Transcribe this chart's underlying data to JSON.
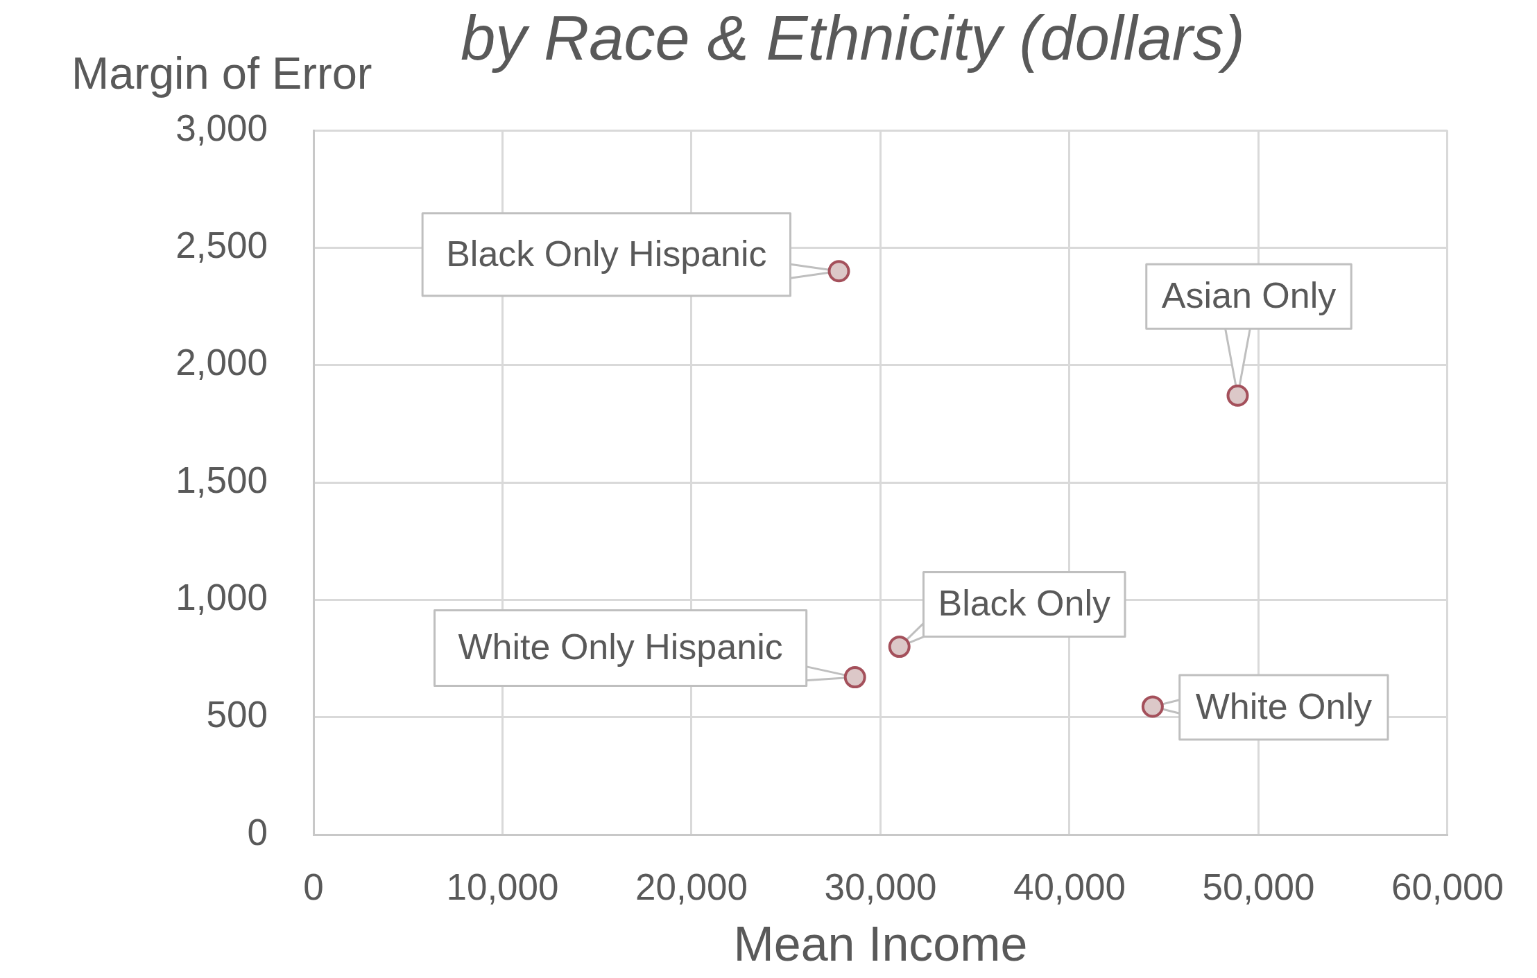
{
  "chart_data": {
    "type": "scatter",
    "title": "by Race & Ethnicity (dollars)",
    "xlabel": "Mean Income",
    "ylabel": "Margin of Error",
    "x": [
      27800,
      48900,
      31000,
      28650,
      44400
    ],
    "series": [
      {
        "color": "#dcc8c8",
        "values": [
          2400,
          1870,
          800,
          670,
          545
        ]
      }
    ],
    "xlim": [
      0,
      60000
    ],
    "xticks": [
      0,
      {
        "value": 10000,
        "label": "10,000"
      },
      {
        "value": 20000,
        "label": "20,000"
      },
      {
        "value": 30000,
        "label": "30,000"
      },
      {
        "value": 40000,
        "label": "40,000"
      },
      {
        "value": 50000,
        "label": "50,000"
      },
      {
        "value": 60000,
        "label": "60,000"
      }
    ],
    "ylim": [
      0,
      3000
    ],
    "yticks": [
      0,
      500,
      {
        "value": 1000,
        "label": "1,000"
      },
      {
        "value": 1500,
        "label": "1,500"
      },
      {
        "value": 2000,
        "label": "2,000"
      },
      {
        "value": 2500,
        "label": "2,500"
      },
      {
        "value": 3000,
        "label": "3,000"
      }
    ],
    "grid": true,
    "legend": false,
    "marker": "circle",
    "annotations": [
      {
        "text": "Black Only Hispanic",
        "x": 27800,
        "y": 2400
      },
      {
        "text": "Asian Only",
        "x": 48900,
        "y": 1870
      },
      {
        "text": "Black Only",
        "x": 31000,
        "y": 800
      },
      {
        "text": "White Only Hispanic",
        "x": 28650,
        "y": 670
      },
      {
        "text": "White Only",
        "x": 44400,
        "y": 545
      }
    ]
  }
}
